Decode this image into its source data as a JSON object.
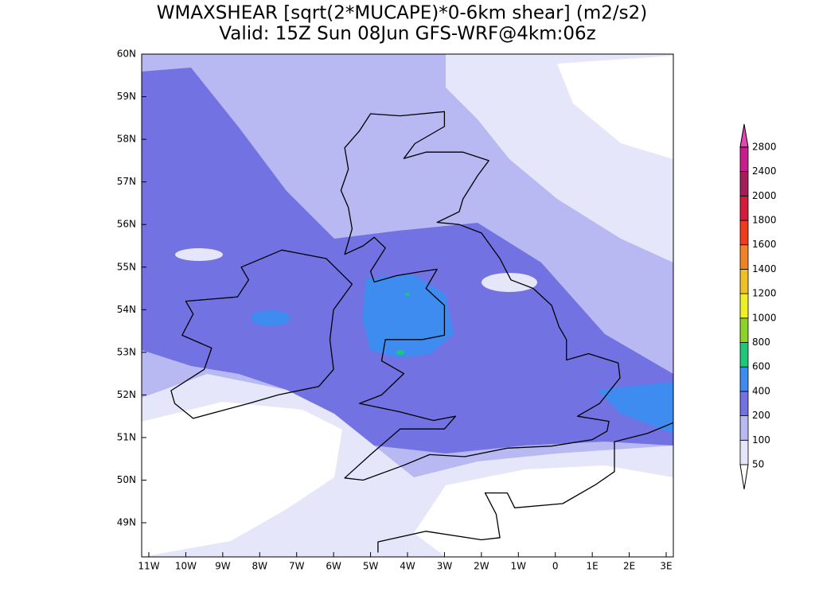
{
  "title": "WMAXSHEAR [sqrt(2*MUCAPE)*0-6km shear] (m2/s2)",
  "subtitle": "Valid: 15Z Sun 08Jun GFS-WRF@4km:06z",
  "map": {
    "lat_labels": [
      "60N",
      "59N",
      "58N",
      "57N",
      "56N",
      "55N",
      "54N",
      "53N",
      "52N",
      "51N",
      "50N",
      "49N"
    ],
    "lon_labels": [
      "11W",
      "10W",
      "9W",
      "8W",
      "7W",
      "6W",
      "5W",
      "4W",
      "3W",
      "2W",
      "1W",
      "0",
      "1E",
      "2E",
      "3E"
    ]
  },
  "colorbar": {
    "below_color": "#ffffff",
    "levels": [
      {
        "value": 50,
        "color": "#e6e6fb"
      },
      {
        "value": 100,
        "color": "#b8b8f2"
      },
      {
        "value": 200,
        "color": "#7272e2"
      },
      {
        "value": 400,
        "color": "#3e8cf0"
      },
      {
        "value": 600,
        "color": "#1ec878"
      },
      {
        "value": 800,
        "color": "#8cd228"
      },
      {
        "value": 1000,
        "color": "#f0f028"
      },
      {
        "value": 1200,
        "color": "#f0c02a"
      },
      {
        "value": 1400,
        "color": "#f08228"
      },
      {
        "value": 1600,
        "color": "#f03c1e"
      },
      {
        "value": 1800,
        "color": "#d21e3c"
      },
      {
        "value": 2000,
        "color": "#a41e5a"
      },
      {
        "value": 2400,
        "color": "#c81e8c"
      },
      {
        "value": 2800,
        "color": "#e646b4"
      }
    ]
  }
}
